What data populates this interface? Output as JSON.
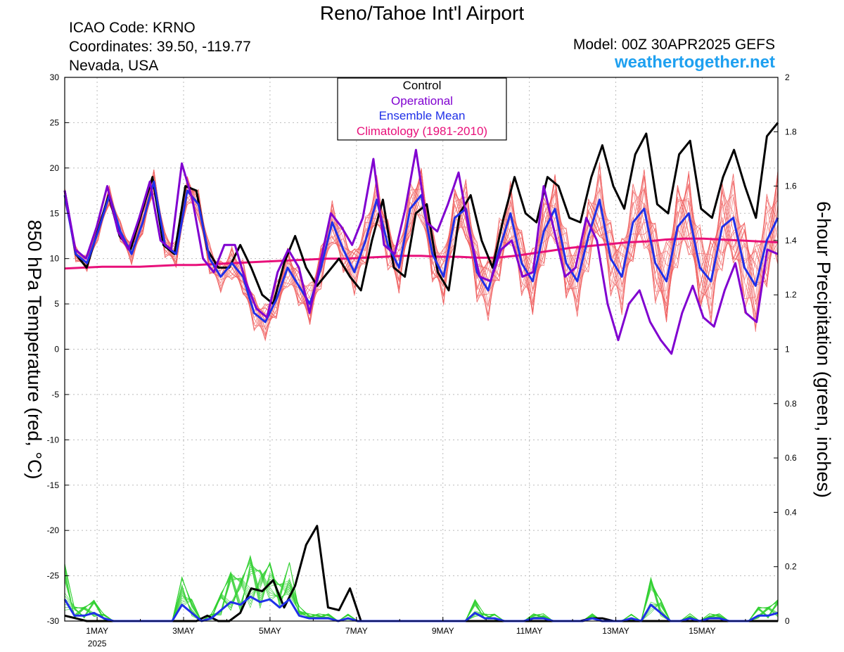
{
  "header": {
    "title": "Reno/Tahoe Int'l Airport",
    "icao": "ICAO Code: KRNO",
    "coords": "Coordinates: 39.50, -119.77",
    "region": "Nevada, USA",
    "model": "Model: 00Z 30APR2025 GEFS",
    "site": "weathertogether.net"
  },
  "colors": {
    "control": "#000000",
    "operational": "#8000d0",
    "mean": "#2030e8",
    "climatology": "#e8107a",
    "members_temp": "#f06060",
    "members_precip": "#30d030",
    "site": "#1ea0f0"
  },
  "chart_data": {
    "type": "line",
    "left_axis": {
      "label": "850 hPa Temperature (red, °C)",
      "ylim": [
        -30,
        30
      ],
      "ticks": [
        "30",
        "25",
        "20",
        "15",
        "10",
        "5",
        "0",
        "-5",
        "-10",
        "-15",
        "-20",
        "-25",
        "-30"
      ]
    },
    "right_axis": {
      "label": "6-hour Precipitation (green, inches)",
      "ylim": [
        0,
        2
      ],
      "ticks": [
        "2",
        "1.8",
        "1.6",
        "1.4",
        "1.2",
        "1",
        "0.8",
        "0.6",
        "0.4",
        "0.2",
        "0"
      ]
    },
    "x_axis": {
      "start": "2025-04-30T06Z",
      "step_hours": 6,
      "ticks": [
        {
          "label": "1MAY",
          "sub": "2025",
          "day": 1
        },
        {
          "label": "3MAY",
          "sub": "",
          "day": 3
        },
        {
          "label": "5MAY",
          "sub": "",
          "day": 5
        },
        {
          "label": "7MAY",
          "sub": "",
          "day": 7
        },
        {
          "label": "9MAY",
          "sub": "",
          "day": 9
        },
        {
          "label": "11MAY",
          "sub": "",
          "day": 11
        },
        {
          "label": "13MAY",
          "sub": "",
          "day": 13
        },
        {
          "label": "15MAY",
          "sub": "",
          "day": 15
        }
      ]
    },
    "grid": true,
    "legend": {
      "placement": "top-center",
      "entries": [
        "Control",
        "Operational",
        "Ensemble Mean",
        "Climatology (1981-2010)"
      ]
    },
    "temperature_series": [
      {
        "name": "Control",
        "color": "#000000",
        "values": [
          17.5,
          10.5,
          9.0,
          13.0,
          17.0,
          12.5,
          11.0,
          15.0,
          19.0,
          11.5,
          10.5,
          18.0,
          17.5,
          11.0,
          9.0,
          9.0,
          11.5,
          9.0,
          6.0,
          5.0,
          9.5,
          12.5,
          9.0,
          7.0,
          8.5,
          10.0,
          8.0,
          6.5,
          12.0,
          16.5,
          9.0,
          8.0,
          15.0,
          16.0,
          8.5,
          6.5,
          15.0,
          17.0,
          12.0,
          9.0,
          14.5,
          19.0,
          15.0,
          14.0,
          19.0,
          18.0,
          14.5,
          14.0,
          19.0,
          22.5,
          18.0,
          15.5,
          21.5,
          23.8,
          16.0,
          15.0,
          21.5,
          23.0,
          15.5,
          14.5,
          19.0,
          22.0,
          18.0,
          14.5,
          23.5,
          25.0
        ]
      },
      {
        "name": "Operational",
        "color": "#8000d0",
        "values": [
          17.5,
          11.0,
          10.0,
          13.5,
          18.0,
          13.0,
          11.0,
          14.5,
          18.5,
          12.0,
          11.0,
          20.5,
          16.5,
          10.0,
          8.5,
          11.5,
          11.5,
          7.5,
          4.5,
          3.5,
          8.5,
          11.0,
          9.0,
          4.0,
          9.5,
          15.0,
          13.5,
          11.5,
          14.5,
          21.0,
          11.5,
          10.5,
          15.5,
          22.0,
          14.0,
          13.0,
          16.0,
          19.5,
          13.0,
          8.0,
          7.5,
          11.0,
          12.0,
          8.0,
          8.5,
          18.0,
          13.0,
          8.0,
          9.0,
          14.5,
          12.0,
          5.0,
          1.0,
          5.0,
          6.5,
          3.0,
          1.0,
          -0.5,
          4.0,
          7.0,
          3.5,
          2.5,
          6.5,
          9.5,
          4.0,
          3.0,
          11.0,
          10.5
        ]
      },
      {
        "name": "Ensemble Mean",
        "color": "#2030e8",
        "values": [
          17.0,
          10.5,
          9.5,
          13.0,
          17.0,
          13.0,
          10.5,
          14.0,
          18.5,
          11.5,
          10.5,
          17.5,
          16.0,
          10.0,
          8.0,
          9.5,
          8.0,
          4.0,
          3.0,
          5.5,
          9.0,
          7.0,
          5.0,
          9.0,
          14.0,
          11.0,
          8.5,
          12.0,
          16.5,
          11.5,
          9.0,
          15.5,
          17.0,
          10.5,
          8.0,
          14.5,
          15.5,
          8.5,
          6.5,
          11.0,
          15.0,
          9.5,
          7.5,
          13.0,
          15.5,
          9.5,
          7.5,
          12.5,
          16.5,
          10.0,
          8.0,
          14.0,
          15.5,
          9.5,
          7.5,
          13.5,
          15.0,
          9.0,
          7.5,
          13.5,
          14.5,
          9.0,
          7.0,
          12.0,
          14.5
        ]
      },
      {
        "name": "Climatology (1981-2010)",
        "color": "#e8107a",
        "values": [
          8.9,
          9.0,
          9.1,
          9.1,
          9.1,
          9.2,
          9.3,
          9.3,
          9.4,
          9.5,
          9.6,
          9.7,
          9.8,
          9.9,
          10.0,
          10.0,
          10.1,
          10.2,
          10.3,
          10.3,
          10.2,
          10.2,
          10.1,
          10.1,
          10.3,
          10.6,
          10.9,
          11.2,
          11.4,
          11.6,
          11.8,
          11.9,
          12.1,
          12.2,
          12.2,
          12.1,
          12.0,
          11.9,
          11.8
        ]
      }
    ],
    "precipitation_series": [
      {
        "name": "Control",
        "color": "#000000",
        "values": [
          0.02,
          0.01,
          0.0,
          0.0,
          0.0,
          0.0,
          0.0,
          0.0,
          0.0,
          0.0,
          0.0,
          0.0,
          0.0,
          0.02,
          0.0,
          0.0,
          0.03,
          0.12,
          0.11,
          0.15,
          0.05,
          0.13,
          0.28,
          0.35,
          0.05,
          0.04,
          0.12,
          0.0,
          0.0,
          0.0,
          0.0,
          0.0,
          0.0,
          0.0,
          0.0,
          0.0,
          0.0,
          0.0,
          0.0,
          0.0,
          0.0,
          0.0,
          0.0,
          0.0,
          0.0,
          0.0,
          0.0,
          0.0,
          0.01,
          0.01,
          0.0,
          0.0,
          0.0,
          0.0,
          0.0,
          0.0,
          0.0,
          0.0,
          0.0,
          0.0,
          0.0,
          0.0,
          0.0,
          0.0,
          0.0,
          0.0
        ]
      },
      {
        "name": "Ensemble Mean",
        "color": "#2030e8",
        "values": [
          0.08,
          0.02,
          0.02,
          0.03,
          0.01,
          0.0,
          0.0,
          0.0,
          0.0,
          0.0,
          0.0,
          0.0,
          0.06,
          0.03,
          0.0,
          0.01,
          0.04,
          0.07,
          0.06,
          0.09,
          0.07,
          0.08,
          0.05,
          0.08,
          0.02,
          0.01,
          0.01,
          0.01,
          0.0,
          0.01,
          0.0,
          0.0,
          0.0,
          0.0,
          0.0,
          0.0,
          0.0,
          0.0,
          0.0,
          0.0,
          0.0,
          0.0,
          0.03,
          0.01,
          0.01,
          0.0,
          0.0,
          0.0,
          0.01,
          0.01,
          0.0,
          0.0,
          0.0,
          0.0,
          0.01,
          0.0,
          0.0,
          0.0,
          0.01,
          0.0,
          0.06,
          0.03,
          0.0,
          0.0,
          0.01,
          0.0,
          0.01,
          0.01,
          0.0,
          0.0,
          0.0,
          0.02,
          0.02,
          0.03
        ]
      }
    ]
  }
}
